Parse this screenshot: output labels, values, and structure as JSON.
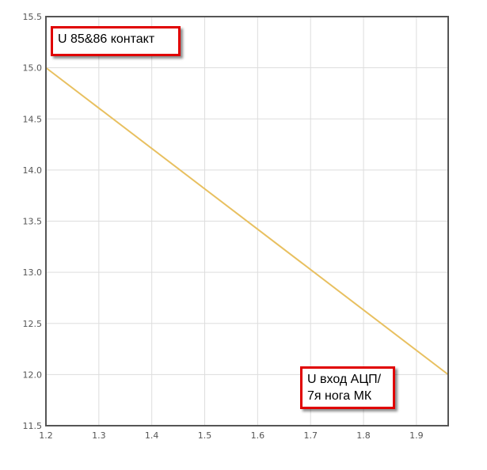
{
  "chart_data": {
    "type": "line",
    "title": "",
    "xlabel": "",
    "ylabel": "",
    "xlim": [
      1.2,
      1.96
    ],
    "ylim": [
      11.5,
      15.5
    ],
    "x_ticks": [
      "1.2",
      "1.3",
      "1.4",
      "1.5",
      "1.6",
      "1.7",
      "1.8",
      "1.9"
    ],
    "y_ticks": [
      "11.5",
      "12.0",
      "12.5",
      "13.0",
      "13.5",
      "14.0",
      "14.5",
      "15.0",
      "15.5"
    ],
    "grid": true,
    "series": [
      {
        "color": "#e8c060",
        "points": [
          [
            1.2,
            15.0
          ],
          [
            1.96,
            12.0
          ]
        ]
      }
    ],
    "annotations": [
      {
        "text": "U 85&86 контакт"
      },
      {
        "line1": "U вход АЦП/",
        "line2": "7я нога МК"
      }
    ]
  }
}
